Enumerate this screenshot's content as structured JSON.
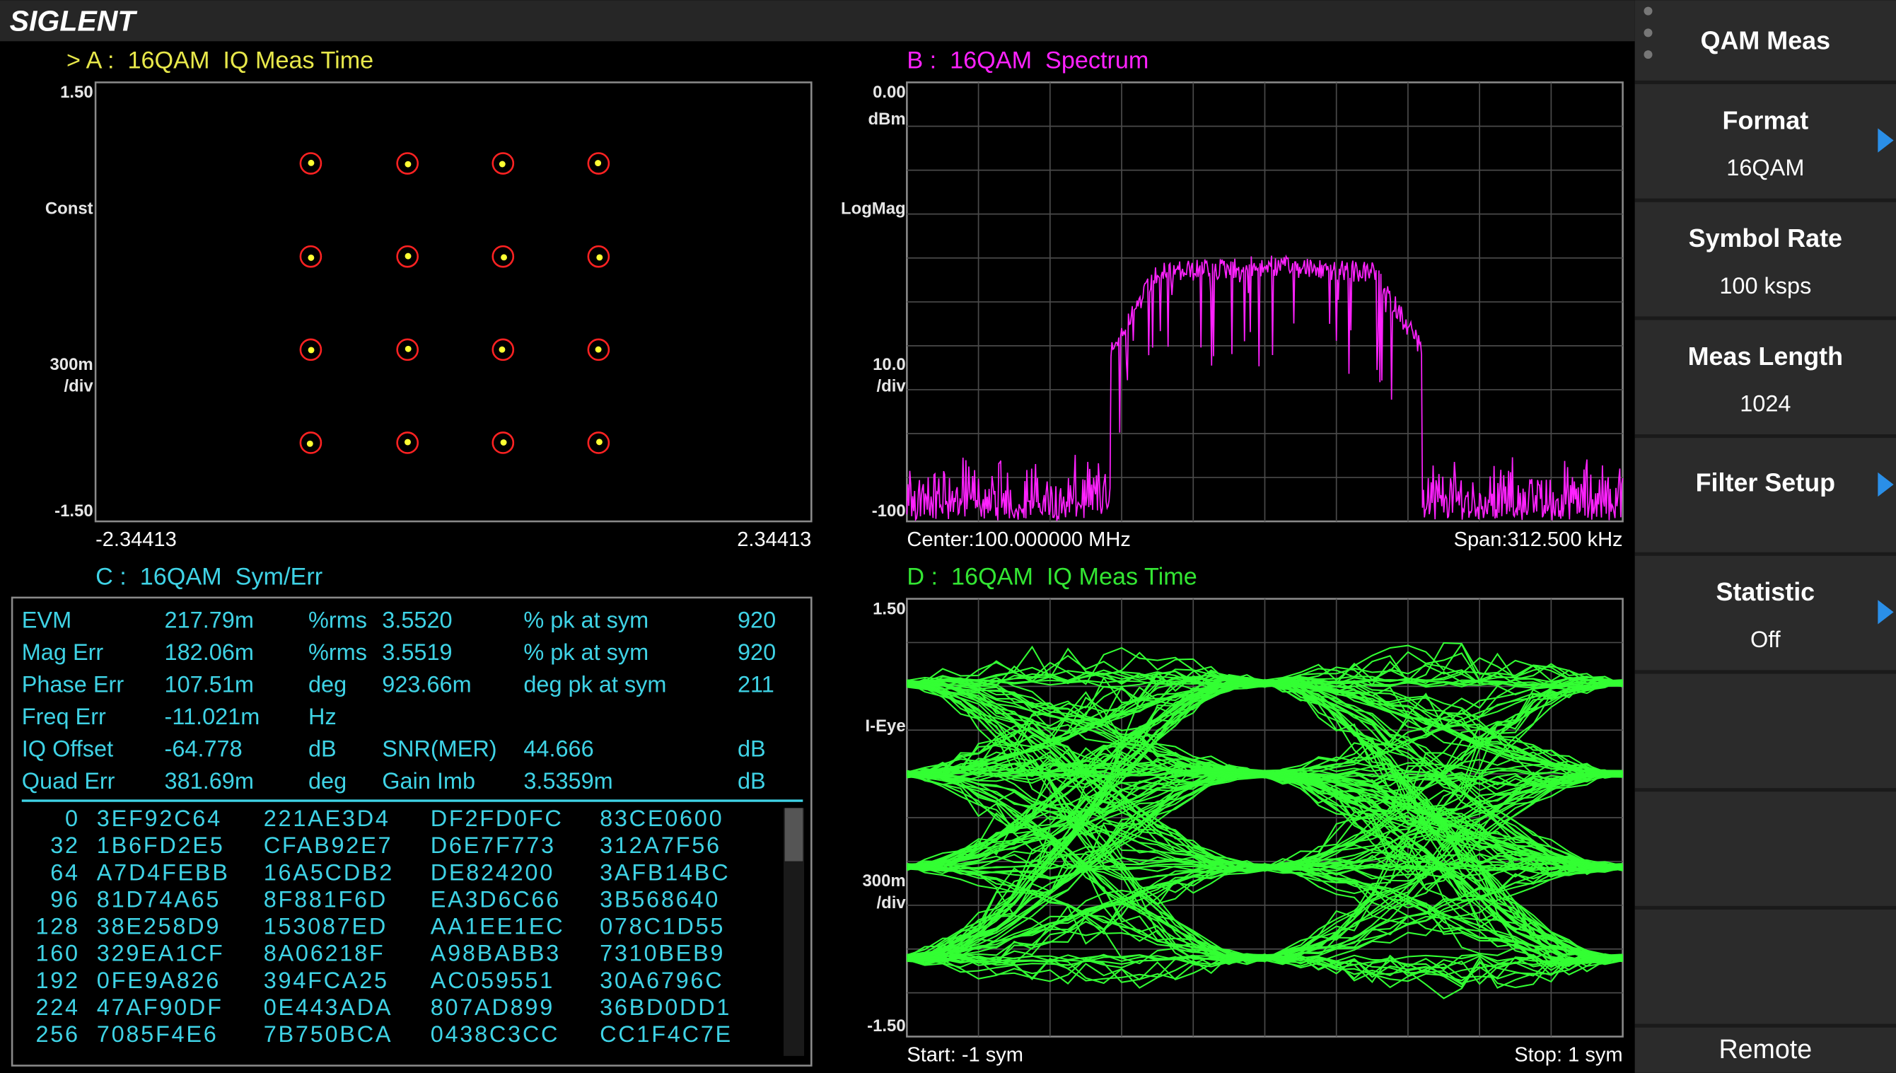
{
  "header": {
    "brand": "SIGLENT"
  },
  "panels": {
    "a": {
      "title": "> A :  16QAM  IQ Meas Time",
      "y_top": "1.50",
      "y_mid_label": "Const",
      "y_scale": "300m",
      "y_scale_unit": "/div",
      "y_bottom": "-1.50",
      "x_left": "-2.34413",
      "x_right": "2.34413"
    },
    "b": {
      "title": "B :  16QAM  Spectrum",
      "y_top": "0.00",
      "y_unit": "dBm",
      "y_mid_label": "LogMag",
      "y_scale": "10.0",
      "y_scale_unit": "/div",
      "y_bottom": "-100",
      "footer_left": "Center:100.000000 MHz",
      "footer_right": "Span:312.500 kHz"
    },
    "c": {
      "title": "C :  16QAM  Sym/Err",
      "metrics": [
        [
          "EVM",
          "217.79m",
          "%rms",
          "3.5520",
          "% pk at sym",
          "920"
        ],
        [
          "Mag Err",
          "182.06m",
          "%rms",
          "3.5519",
          "% pk at sym",
          "920"
        ],
        [
          "Phase Err",
          "107.51m",
          "deg",
          "923.66m",
          "deg pk at sym",
          "211"
        ],
        [
          "Freq Err",
          "-11.021m",
          "Hz"
        ],
        [
          "IQ Offset",
          "-64.778",
          "dB",
          "SNR(MER)",
          "44.666",
          "dB"
        ],
        [
          "Quad Err",
          "381.69m",
          "deg",
          "Gain Imb",
          "3.5359m",
          "dB"
        ]
      ],
      "symbols": [
        [
          "0",
          "3EF92C64",
          "221AE3D4",
          "DF2FD0FC",
          "83CE0600"
        ],
        [
          "32",
          "1B6FD2E5",
          "CFAB92E7",
          "D6E7F773",
          "312A7F56"
        ],
        [
          "64",
          "A7D4FEBB",
          "16A5CDB2",
          "DE824200",
          "3AFB14BC"
        ],
        [
          "96",
          "81D74A65",
          "8F881F6D",
          "EA3D6C66",
          "3B568640"
        ],
        [
          "128",
          "38E258D9",
          "153087ED",
          "AA1EE1EC",
          "078C1D55"
        ],
        [
          "160",
          "329EA1CF",
          "8A06218F",
          "A98BABB3",
          "7310BEB9"
        ],
        [
          "192",
          "0FE9A826",
          "394FCA25",
          "AC059551",
          "30A6796C"
        ],
        [
          "224",
          "47AF90DF",
          "0E443ADA",
          "807AD899",
          "36BD0DD1"
        ],
        [
          "256",
          "7085F4E6",
          "7B750BCA",
          "0438C3CC",
          "CC1F4C7E"
        ]
      ]
    },
    "d": {
      "title": "D :  16QAM  IQ Meas Time",
      "y_top": "1.50",
      "y_mid_label": "I-Eye",
      "y_scale": "300m",
      "y_scale_unit": "/div",
      "y_bottom": "-1.50",
      "footer_left": "Start: -1 sym",
      "footer_right": "Stop: 1 sym"
    }
  },
  "menu": {
    "title": "QAM Meas",
    "items": [
      {
        "label": "Format",
        "value": "16QAM",
        "arrow": true
      },
      {
        "label": "Symbol Rate",
        "value": "100 ksps",
        "arrow": false
      },
      {
        "label": "Meas Length",
        "value": "1024",
        "arrow": false
      },
      {
        "label": "Filter Setup",
        "arrow": true
      },
      {
        "label": "Statistic",
        "value": "Off",
        "arrow": true
      }
    ],
    "status": "Remote"
  }
}
